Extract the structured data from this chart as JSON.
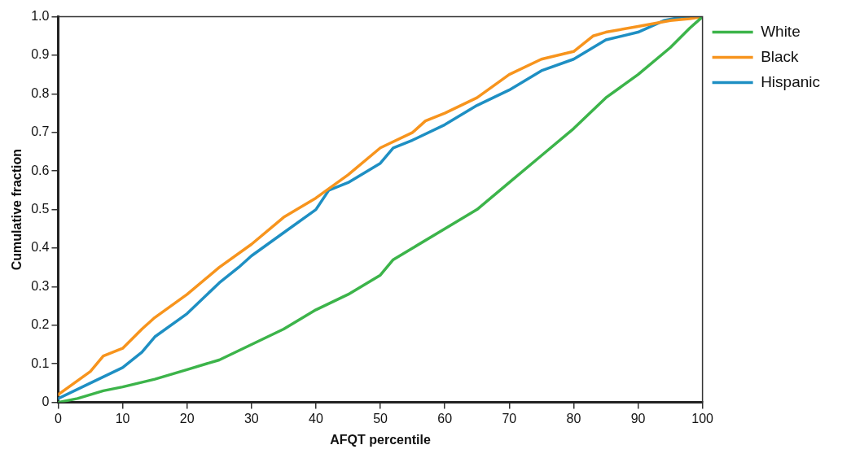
{
  "chart_data": {
    "type": "line",
    "xlabel": "AFQT percentile",
    "ylabel": "Cumulative fraction",
    "xlim": [
      0,
      100
    ],
    "xticks": [
      0,
      10,
      20,
      30,
      40,
      50,
      60,
      70,
      80,
      90,
      100
    ],
    "ylim": [
      0,
      1
    ],
    "yticks": [
      0,
      0.1,
      0.2,
      0.3,
      0.4,
      0.5,
      0.6,
      0.7,
      0.8,
      0.9,
      {
        "value": 1,
        "label": "1.0"
      }
    ],
    "grid": false,
    "legend": "right",
    "marker": "none",
    "line_style": "solid",
    "series": [
      {
        "name": "White",
        "color": "#3cb44a",
        "x": [
          0,
          3,
          5,
          7,
          10,
          15,
          20,
          25,
          30,
          35,
          40,
          45,
          50,
          52,
          55,
          60,
          65,
          70,
          75,
          80,
          85,
          90,
          95,
          98,
          100
        ],
        "values": [
          0,
          0.01,
          0.02,
          0.03,
          0.04,
          0.06,
          0.085,
          0.11,
          0.15,
          0.19,
          0.24,
          0.28,
          0.33,
          0.37,
          0.4,
          0.45,
          0.5,
          0.57,
          0.64,
          0.71,
          0.79,
          0.85,
          0.92,
          0.97,
          1.0
        ]
      },
      {
        "name": "Black",
        "color": "#f7941d",
        "x": [
          0,
          5,
          7,
          10,
          13,
          15,
          20,
          25,
          30,
          35,
          40,
          45,
          50,
          55,
          57,
          60,
          65,
          70,
          75,
          80,
          83,
          85,
          90,
          95,
          98,
          100
        ],
        "values": [
          0.02,
          0.08,
          0.12,
          0.14,
          0.19,
          0.22,
          0.28,
          0.35,
          0.41,
          0.48,
          0.53,
          0.59,
          0.66,
          0.7,
          0.73,
          0.75,
          0.79,
          0.85,
          0.89,
          0.91,
          0.95,
          0.96,
          0.975,
          0.99,
          0.995,
          1.0
        ]
      },
      {
        "name": "Hispanic",
        "color": "#1e8fc3",
        "x": [
          0,
          5,
          10,
          13,
          15,
          20,
          25,
          28,
          30,
          35,
          40,
          42,
          45,
          50,
          52,
          55,
          60,
          65,
          70,
          75,
          80,
          85,
          90,
          94,
          97,
          100
        ],
        "values": [
          0.01,
          0.05,
          0.09,
          0.13,
          0.17,
          0.23,
          0.31,
          0.35,
          0.38,
          0.44,
          0.5,
          0.55,
          0.57,
          0.62,
          0.66,
          0.68,
          0.72,
          0.77,
          0.81,
          0.86,
          0.89,
          0.94,
          0.96,
          0.99,
          1.0,
          1.0
        ]
      }
    ]
  }
}
